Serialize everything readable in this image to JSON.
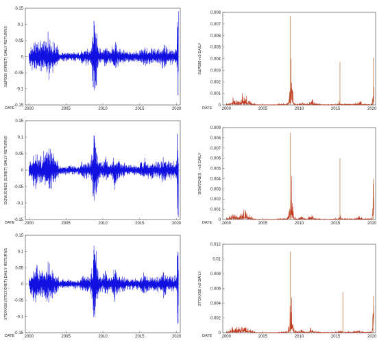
{
  "chart_data": [
    {
      "type": "line",
      "series": [
        {
          "name": "S&P500 (SPRET)",
          "color": "#1010e0",
          "peaks": [
            {
              "x": 2008.8,
              "y": 0.11
            },
            {
              "x": 2008.7,
              "y": -0.095
            },
            {
              "x": 2020.1,
              "y": 0.09
            },
            {
              "x": 2020.2,
              "y": -0.12
            }
          ]
        }
      ],
      "ylabel": "S&P500 (SPRET)   DAILY RETURNS",
      "xlabel": "DATE",
      "ylim": [
        -0.15,
        0.15
      ],
      "yticks": [
        "-0.15",
        "-0.1",
        "-0.05",
        "0",
        "0.05",
        "0.1",
        "0.15"
      ],
      "xlim": [
        1999.5,
        2020.5
      ],
      "xticks": [
        "2000",
        "2005",
        "2010",
        "2015",
        "2020"
      ]
    },
    {
      "type": "line",
      "series": [
        {
          "name": "S&P500 rv5",
          "color": "#c0391f",
          "peaks": [
            {
              "x": 2008.8,
              "y": 0.0077
            },
            {
              "x": 2015.6,
              "y": 0.0037
            },
            {
              "x": 2020.2,
              "y": 0.0041
            }
          ]
        }
      ],
      "ylabel": "S&P500   rv5   DAILY",
      "xlabel": "DATE",
      "ylim": [
        0,
        0.008
      ],
      "yticks": [
        "0",
        "0.001",
        "0.002",
        "0.003",
        "0.004",
        "0.005",
        "0.006",
        "0.007",
        "0.008"
      ],
      "xlim": [
        1999.5,
        2020.5
      ],
      "xticks": [
        "2000",
        "2005",
        "2010",
        "2015",
        "2020"
      ]
    },
    {
      "type": "line",
      "series": [
        {
          "name": "DOWJONES (DJRET)",
          "color": "#1010e0",
          "peaks": [
            {
              "x": 2008.8,
              "y": 0.105
            },
            {
              "x": 2008.7,
              "y": -0.08
            },
            {
              "x": 2020.1,
              "y": 0.11
            },
            {
              "x": 2020.2,
              "y": -0.135
            }
          ]
        }
      ],
      "ylabel": "DOWJONES   (DJRET) DAILY RETURNS",
      "xlabel": "DATE",
      "ylim": [
        -0.15,
        0.15
      ],
      "yticks": [
        "-0.15",
        "-0.1",
        "-0.05",
        "0",
        "0.05",
        "0.1",
        "0.15"
      ],
      "xlim": [
        1999.5,
        2020.5
      ],
      "xticks": [
        "2000",
        "2005",
        "2010",
        "2015",
        "2020"
      ]
    },
    {
      "type": "line",
      "series": [
        {
          "name": "DOWJONES rv5",
          "color": "#c0391f",
          "peaks": [
            {
              "x": 2008.8,
              "y": 0.0085
            },
            {
              "x": 2015.6,
              "y": 0.006
            },
            {
              "x": 2020.2,
              "y": 0.004
            }
          ]
        }
      ],
      "ylabel": "DOWJONES - rv5   DAILY",
      "xlabel": "DATE",
      "ylim": [
        0,
        0.009
      ],
      "yticks": [
        "0",
        "0.001",
        "0.002",
        "0.003",
        "0.004",
        "0.005",
        "0.006",
        "0.007",
        "0.008",
        "0.009"
      ],
      "xlim": [
        1999.5,
        2020.5
      ],
      "xticks": [
        "2000",
        "2005",
        "2010",
        "2015",
        "2020"
      ]
    },
    {
      "type": "line",
      "series": [
        {
          "name": "STOXX50 (STOXXRET)",
          "color": "#1010e0",
          "peaks": [
            {
              "x": 2008.8,
              "y": 0.105
            },
            {
              "x": 2008.7,
              "y": -0.08
            },
            {
              "x": 2020.1,
              "y": 0.085
            },
            {
              "x": 2020.2,
              "y": -0.12
            }
          ]
        }
      ],
      "ylabel": "STOXX50   (STOXXRET) DAILY RETURNS",
      "xlabel": "DATE",
      "ylim": [
        -0.15,
        0.15
      ],
      "yticks": [
        "-0.15",
        "-0.1",
        "-0.05",
        "0",
        "0.05",
        "0.1",
        "0.15"
      ],
      "xlim": [
        1999.5,
        2020.5
      ],
      "xticks": [
        "2000",
        "2005",
        "2010",
        "2015",
        "2020"
      ]
    },
    {
      "type": "line",
      "series": [
        {
          "name": "STOXX50 rv5",
          "color": "#c0391f",
          "peaks": [
            {
              "x": 2008.8,
              "y": 0.011
            },
            {
              "x": 2016.0,
              "y": 0.0055
            },
            {
              "x": 2020.2,
              "y": 0.005
            }
          ]
        }
      ],
      "ylabel": "STOXX50   rv5   DAILY",
      "xlabel": "DATE",
      "ylim": [
        0,
        0.012
      ],
      "yticks": [
        "0",
        "0.002",
        "0.004",
        "0.006",
        "0.008",
        "0.01",
        "0.012"
      ],
      "xlim": [
        1999.5,
        2020.5
      ],
      "xticks": [
        "2000",
        "2005",
        "2010",
        "2015",
        "2020"
      ]
    }
  ]
}
